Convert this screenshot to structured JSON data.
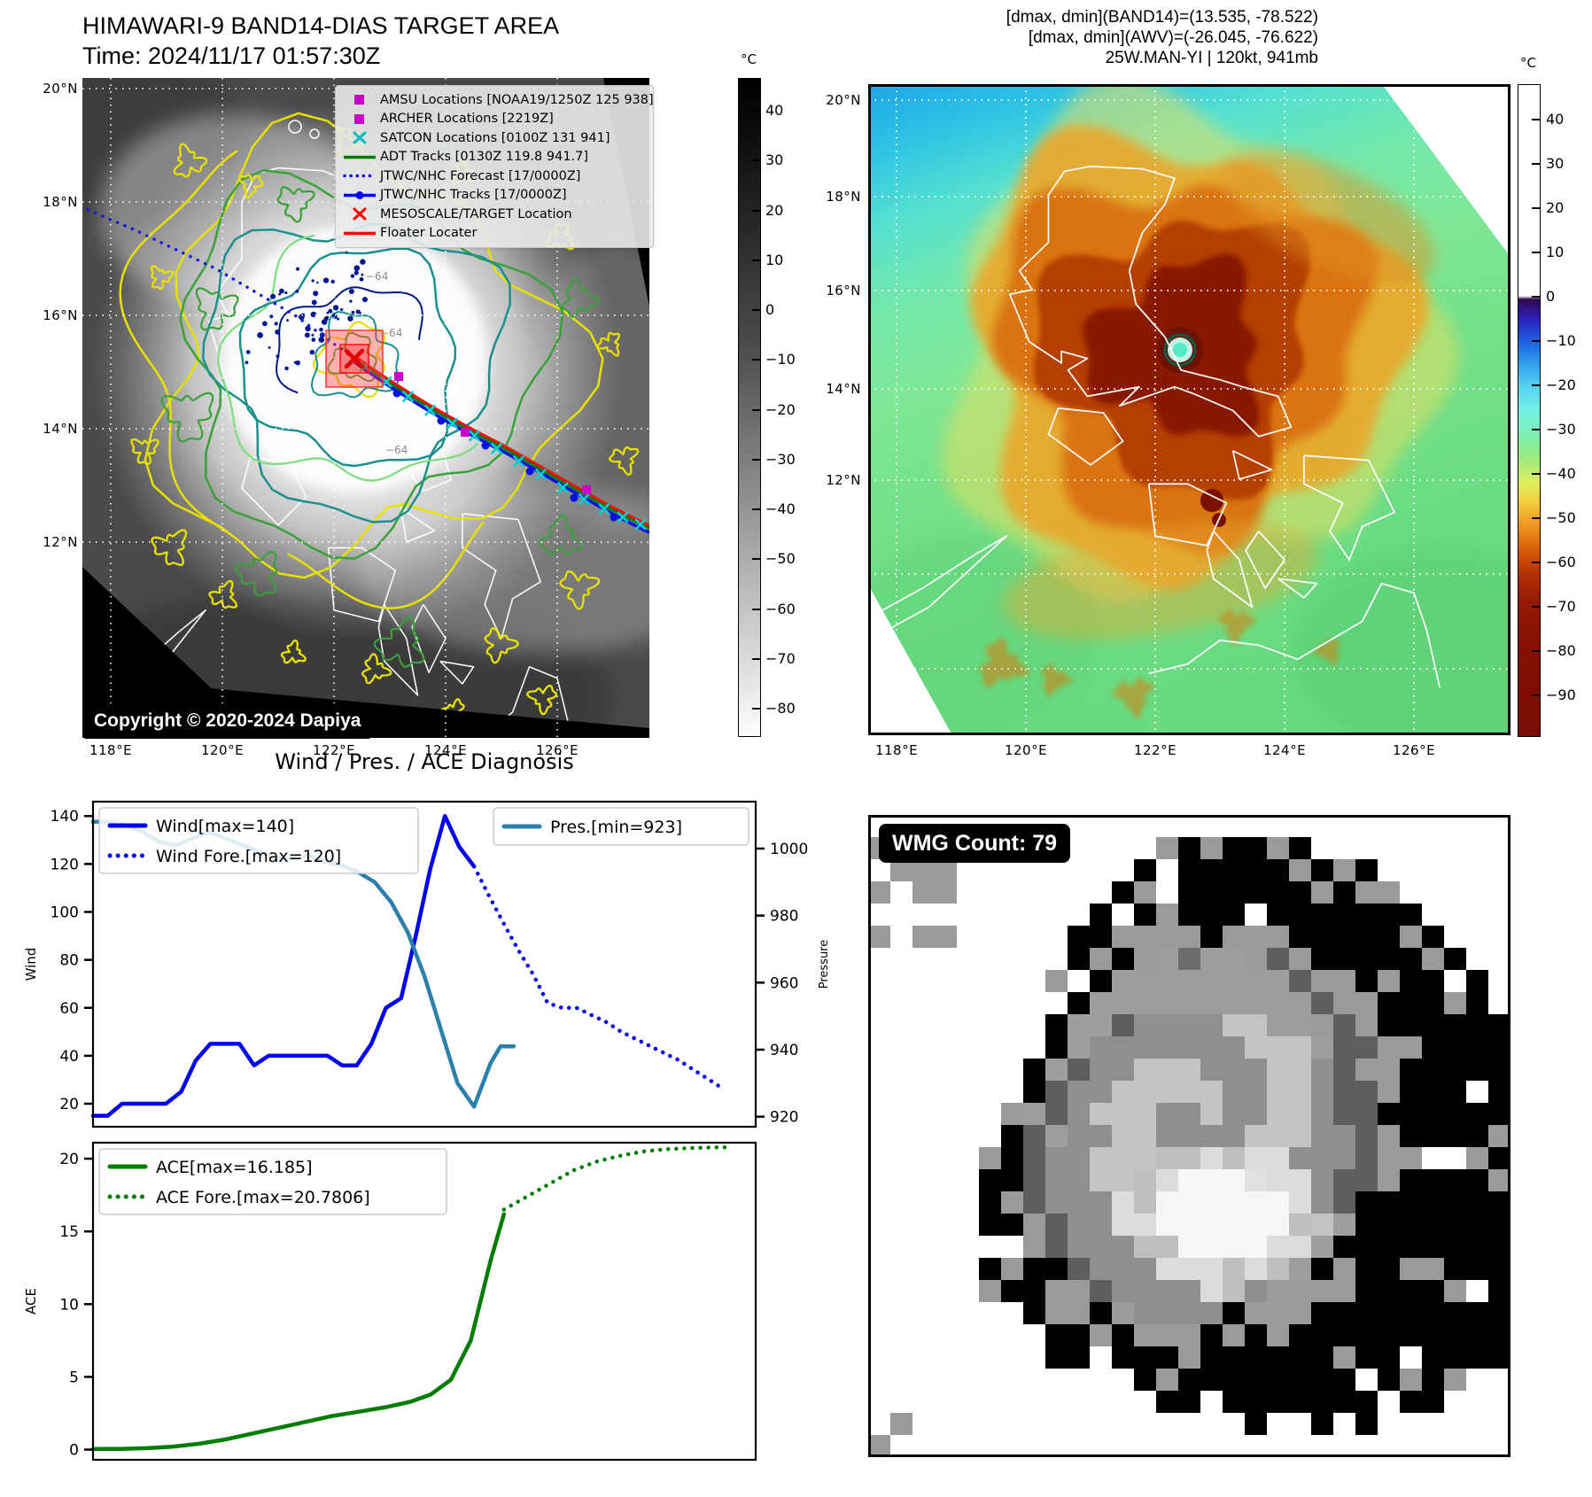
{
  "header": {
    "title_line1": "HIMAWARI-9 BAND14-DIAS TARGET AREA",
    "title_line2": "Time: 2024/11/17 01:57:30Z",
    "right_line1": "[dmax, dmin](BAND14)=(13.535, -78.522)",
    "right_line2": "[dmax, dmin](AWV)=(-26.045, -76.622)",
    "right_line3": "25W.MAN-YI | 120kt, 941mb"
  },
  "band14_map": {
    "x_ticks": [
      "118°E",
      "120°E",
      "122°E",
      "124°E",
      "126°E"
    ],
    "y_ticks": [
      "20°N",
      "18°N",
      "16°N",
      "14°N",
      "12°N"
    ],
    "colorbar_unit": "°C",
    "colorbar_ticks": [
      "40",
      "30",
      "20",
      "10",
      "0",
      "−10",
      "−20",
      "−30",
      "−40",
      "−50",
      "−60",
      "−70",
      "−80"
    ],
    "contour_labels": [
      "−64",
      "−64",
      "−64"
    ],
    "copyright": "Copyright © 2020-2024 Dapiya",
    "legend": [
      {
        "symbol": "square",
        "color": "#c800c8",
        "label": "AMSU Locations [NOAA19/1250Z 125 938]"
      },
      {
        "symbol": "square",
        "color": "#c800c8",
        "label": "ARCHER Locations [2219Z]"
      },
      {
        "symbol": "xmark",
        "color": "#00bebe",
        "label": "SATCON Locations [0100Z 131 941]"
      },
      {
        "symbol": "line",
        "color": "#007d00",
        "label": "ADT Tracks [0130Z 119.8 941.7]"
      },
      {
        "symbol": "dotted",
        "color": "#0000ff",
        "label": "JTWC/NHC Forecast [17/0000Z]"
      },
      {
        "symbol": "linedot",
        "color": "#0000ff",
        "label": "JTWC/NHC Tracks [17/0000Z]"
      },
      {
        "symbol": "xmark",
        "color": "#ff0000",
        "label": "MESOSCALE/TARGET Location"
      },
      {
        "symbol": "line",
        "color": "#ff0000",
        "label": "Floater Locater"
      }
    ]
  },
  "awv_map": {
    "x_ticks": [
      "118°E",
      "120°E",
      "122°E",
      "124°E",
      "126°E"
    ],
    "y_ticks": [
      "20°N",
      "18°N",
      "16°N",
      "14°N",
      "12°N"
    ],
    "colorbar_unit": "°C",
    "colorbar_ticks": [
      "40",
      "30",
      "20",
      "10",
      "0",
      "−10",
      "−20",
      "−30",
      "−40",
      "−50",
      "−60",
      "−70",
      "−80",
      "−90"
    ]
  },
  "wmg": {
    "label": "WMG Count: 79"
  },
  "chart_data": [
    {
      "type": "line",
      "title": "Wind / Pres. / ACE Diagnosis",
      "ylabel": "Wind",
      "ylabel_right": "Pressure",
      "ylim": [
        10.4,
        146
      ],
      "ylim_right": [
        917,
        1014
      ],
      "yticks": [
        20,
        40,
        60,
        80,
        100,
        120,
        140
      ],
      "yticks_right": [
        920,
        940,
        960,
        980,
        1000
      ],
      "xlim": [
        0,
        1
      ],
      "grid": false,
      "series": [
        {
          "name": "Wind[max=140]",
          "color": "#0000ee",
          "style": "solid",
          "axis": "left",
          "x": [
            0,
            0.022,
            0.044,
            0.066,
            0.088,
            0.11,
            0.133,
            0.155,
            0.177,
            0.199,
            0.221,
            0.243,
            0.265,
            0.288,
            0.31,
            0.332,
            0.354,
            0.376,
            0.398,
            0.42,
            0.442,
            0.465,
            0.487,
            0.509,
            0.531,
            0.553,
            0.575
          ],
          "values": [
            15,
            15,
            20,
            20,
            20,
            20,
            25,
            38,
            45,
            45,
            45,
            36,
            40,
            40,
            40,
            40,
            40,
            36,
            36,
            45,
            60,
            64,
            90,
            118,
            140,
            127,
            119
          ]
        },
        {
          "name": "Wind Fore.[max=120]",
          "color": "#0000ee",
          "style": "dotted",
          "axis": "left",
          "x": [
            0.575,
            0.597,
            0.62,
            0.642,
            0.664,
            0.686,
            0.708,
            0.73,
            0.752,
            0.775,
            0.797,
            0.819,
            0.841,
            0.863,
            0.885,
            0.907,
            0.93,
            0.952
          ],
          "values": [
            119,
            107,
            95,
            84,
            74,
            62,
            60,
            60,
            57,
            54,
            50,
            47,
            44,
            41,
            38,
            34,
            30,
            26
          ]
        },
        {
          "name": "Pres.[min=923]",
          "color": "#2b7fab",
          "style": "solid",
          "axis": "right",
          "x": [
            0,
            0.025,
            0.05,
            0.075,
            0.1,
            0.125,
            0.15,
            0.175,
            0.2,
            0.225,
            0.25,
            0.275,
            0.3,
            0.325,
            0.35,
            0.375,
            0.4,
            0.425,
            0.45,
            0.475,
            0.5,
            0.525,
            0.55,
            0.575,
            0.6,
            0.615,
            0.635
          ],
          "values": [
            1008,
            1008,
            1007,
            1005,
            1002,
            1001,
            1003,
            1005,
            1003,
            1001,
            999,
            997,
            997,
            998,
            996,
            995,
            993,
            990,
            984,
            975,
            962,
            946,
            930,
            923,
            936,
            941,
            941
          ]
        }
      ]
    },
    {
      "type": "line",
      "ylabel": "ACE",
      "ylim": [
        -0.7,
        21.1
      ],
      "yticks": [
        0,
        5,
        10,
        15,
        20
      ],
      "xlim": [
        0,
        1
      ],
      "grid": false,
      "series": [
        {
          "name": "ACE[max=16.185]",
          "color": "#007d00",
          "style": "solid",
          "axis": "left",
          "x": [
            0,
            0.04,
            0.08,
            0.12,
            0.16,
            0.2,
            0.24,
            0.28,
            0.32,
            0.36,
            0.4,
            0.44,
            0.48,
            0.51,
            0.54,
            0.57,
            0.6,
            0.62
          ],
          "values": [
            0.05,
            0.05,
            0.1,
            0.2,
            0.4,
            0.7,
            1.1,
            1.5,
            1.9,
            2.3,
            2.6,
            2.9,
            3.3,
            3.8,
            4.8,
            7.5,
            13,
            16.185
          ]
        },
        {
          "name": "ACE Fore.[max=20.7806]",
          "color": "#007d00",
          "style": "dotted",
          "axis": "left",
          "x": [
            0.62,
            0.655,
            0.69,
            0.725,
            0.76,
            0.795,
            0.83,
            0.865,
            0.9,
            0.935,
            0.965
          ],
          "values": [
            16.5,
            17.4,
            18.3,
            19.2,
            19.8,
            20.2,
            20.5,
            20.65,
            20.73,
            20.78,
            20.78
          ]
        }
      ]
    }
  ]
}
